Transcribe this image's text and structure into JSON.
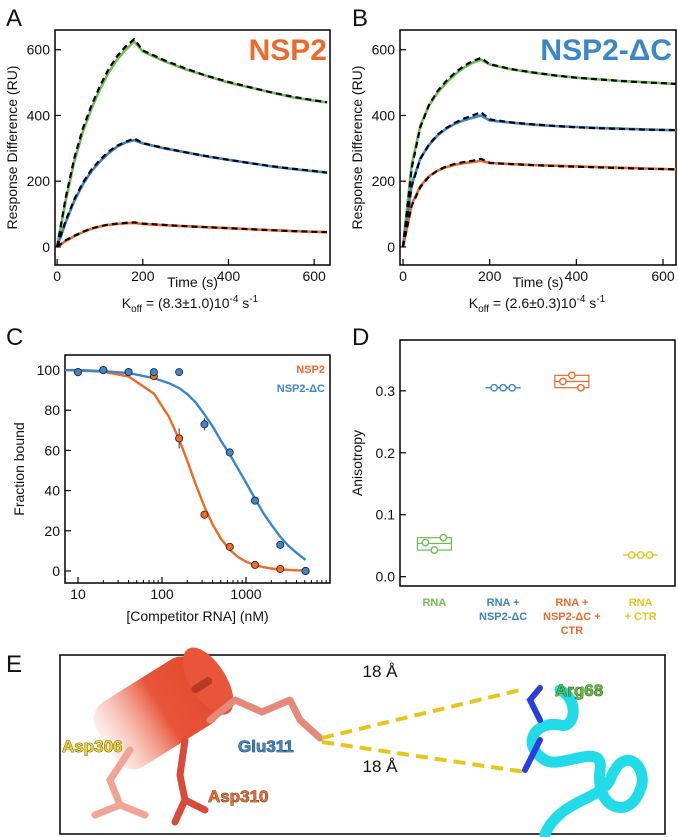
{
  "chart_data": [
    {
      "type": "line",
      "panel_label": "A",
      "title": "NSP2",
      "title_color": "#ee6a2a",
      "xlabel": "Time (s)",
      "ylabel": "Response Difference (RU)",
      "annotation": [
        "K",
        "off",
        " = (8.3±1.0)10",
        "-4",
        " s",
        "-1"
      ],
      "x": [
        0,
        20,
        40,
        60,
        80,
        100,
        120,
        140,
        160,
        180,
        200,
        250,
        300,
        350,
        400,
        450,
        500,
        550,
        600,
        630
      ],
      "xlim": [
        -5,
        637
      ],
      "ylim": [
        -55,
        660
      ],
      "xticks": [
        0,
        200,
        400,
        600
      ],
      "yticks": [
        0,
        200,
        400,
        600
      ],
      "series": [
        {
          "color": "#6cbf4f",
          "values": [
            0,
            140,
            260,
            350,
            420,
            480,
            530,
            570,
            600,
            625,
            595,
            565,
            540,
            520,
            500,
            485,
            470,
            455,
            445,
            440
          ]
        },
        {
          "color": "#3a86c8",
          "values": [
            0,
            75,
            140,
            190,
            230,
            260,
            285,
            305,
            318,
            325,
            315,
            300,
            288,
            275,
            265,
            255,
            245,
            237,
            230,
            226
          ]
        },
        {
          "color": "#ee6a2a",
          "values": [
            0,
            18,
            32,
            45,
            55,
            62,
            67,
            70,
            72,
            73,
            70,
            66,
            63,
            60,
            57,
            54,
            51,
            48,
            46,
            45
          ]
        },
        {
          "color": "#000000",
          "dashed": true,
          "values": [
            0,
            150,
            270,
            360,
            430,
            490,
            540,
            580,
            610,
            632,
            598,
            568,
            543,
            520,
            502,
            486,
            470,
            457,
            446,
            440
          ]
        },
        {
          "color": "#000000",
          "dashed": true,
          "values": [
            0,
            80,
            145,
            195,
            235,
            265,
            290,
            308,
            320,
            330,
            316,
            301,
            288,
            276,
            265,
            255,
            246,
            238,
            231,
            226
          ]
        },
        {
          "color": "#000000",
          "dashed": true,
          "values": [
            0,
            20,
            34,
            46,
            56,
            63,
            68,
            71,
            73,
            75,
            71,
            67,
            63,
            60,
            57,
            54,
            51,
            48,
            46,
            45
          ]
        }
      ]
    },
    {
      "type": "line",
      "panel_label": "B",
      "title": "NSP2-ΔC",
      "title_color": "#3a86c8",
      "xlabel": "Time (s)",
      "ylabel": "Response Difference (RU)",
      "annotation": [
        "K",
        "off",
        " = (2.6±0.3)10",
        "-4",
        " s",
        "-1"
      ],
      "x": [
        0,
        20,
        40,
        60,
        80,
        100,
        120,
        140,
        160,
        180,
        200,
        250,
        300,
        350,
        400,
        450,
        500,
        550,
        600,
        630
      ],
      "xlim": [
        -7,
        630
      ],
      "ylim": [
        -55,
        660
      ],
      "xticks": [
        0,
        200,
        400,
        600
      ],
      "yticks": [
        0,
        200,
        400,
        600
      ],
      "series": [
        {
          "color": "#6cbf4f",
          "values": [
            0,
            250,
            370,
            430,
            470,
            500,
            525,
            545,
            560,
            570,
            555,
            540,
            530,
            522,
            515,
            510,
            505,
            502,
            498,
            496
          ]
        },
        {
          "color": "#3a86c8",
          "values": [
            0,
            190,
            270,
            310,
            340,
            360,
            375,
            385,
            393,
            400,
            385,
            378,
            372,
            368,
            365,
            362,
            360,
            358,
            356,
            355
          ]
        },
        {
          "color": "#ee6a2a",
          "values": [
            0,
            130,
            185,
            215,
            232,
            243,
            250,
            255,
            258,
            262,
            255,
            252,
            249,
            247,
            245,
            243,
            241,
            239,
            237,
            236
          ]
        },
        {
          "color": "#000000",
          "dashed": true,
          "values": [
            0,
            240,
            365,
            432,
            475,
            505,
            530,
            550,
            565,
            575,
            556,
            541,
            531,
            522,
            515,
            510,
            505,
            501,
            498,
            496
          ]
        },
        {
          "color": "#000000",
          "dashed": true,
          "values": [
            0,
            185,
            268,
            312,
            342,
            362,
            378,
            390,
            400,
            410,
            388,
            379,
            373,
            368,
            364,
            361,
            359,
            357,
            356,
            355
          ]
        },
        {
          "color": "#000000",
          "dashed": true,
          "values": [
            0,
            125,
            182,
            214,
            233,
            245,
            253,
            258,
            262,
            268,
            256,
            252,
            249,
            246,
            244,
            242,
            240,
            238,
            237,
            236
          ]
        }
      ]
    },
    {
      "type": "scatter",
      "panel_label": "C",
      "log_x": true,
      "xlabel": "[Competitor RNA] (nM)",
      "ylabel": "Fraction bound",
      "xlim": [
        7,
        10000
      ],
      "ylim": [
        -6,
        107.5
      ],
      "xticks": [
        10,
        100,
        1000
      ],
      "xticks_minor": [
        20,
        30,
        40,
        50,
        60,
        70,
        80,
        90,
        200,
        300,
        400,
        500,
        600,
        700,
        800,
        900,
        2000,
        3000,
        4000,
        5000,
        6000,
        7000,
        8000,
        9000
      ],
      "yticks": [
        0,
        20,
        40,
        60,
        80,
        100
      ],
      "series": [
        {
          "name": "NSP2",
          "color": "#ee6a2a",
          "x": [
            10,
            20,
            40,
            80,
            160,
            320,
            640,
            1280,
            2560,
            5120
          ],
          "values": [
            99,
            100,
            99,
            97,
            66,
            28,
            12,
            3,
            1,
            0
          ],
          "errors": [
            1,
            1,
            1,
            1,
            5,
            2,
            1,
            1,
            1,
            1
          ],
          "fit_x": [
            7,
            10,
            20,
            40,
            80,
            120,
            160,
            200,
            250,
            320,
            400,
            500,
            640,
            800,
            1000,
            1280,
            1600,
            2000,
            2560,
            3200,
            4000,
            5120
          ],
          "fit_values": [
            100,
            99.8,
            99.2,
            96.8,
            88.3,
            77,
            65.4,
            54.8,
            43.6,
            32.1,
            23.2,
            16.2,
            10.6,
            7,
            4.6,
            2.9,
            1.9,
            1.2,
            0.7,
            0.5,
            0.3,
            0.2
          ]
        },
        {
          "name": "NSP2-ΔC",
          "color": "#3a86c8",
          "x": [
            10,
            20,
            40,
            80,
            160,
            320,
            640,
            1280,
            2560,
            5120
          ],
          "values": [
            99,
            100,
            99,
            99,
            99,
            73,
            59,
            35,
            13,
            0
          ],
          "errors": [
            2,
            1,
            1,
            1,
            1,
            3,
            2,
            1,
            1,
            1
          ],
          "fit_x": [
            7,
            10,
            20,
            40,
            80,
            120,
            160,
            200,
            250,
            320,
            400,
            500,
            640,
            800,
            1000,
            1280,
            1600,
            2000,
            2560,
            3200,
            4000,
            5120
          ],
          "fit_values": [
            100,
            100,
            99.5,
            98.5,
            96,
            93.5,
            91,
            88,
            84,
            78,
            72,
            65,
            58,
            51,
            44,
            36,
            29,
            23,
            17,
            12.5,
            9,
            5.5
          ]
        }
      ]
    },
    {
      "type": "dot",
      "panel_label": "D",
      "ylabel": "Anisotropy",
      "ylim": [
        -0.015,
        0.382
      ],
      "yticks": [
        {
          "value": 0,
          "label": "0.0"
        },
        0.1,
        0.2,
        0.3
      ],
      "categories": [
        [
          "RNA"
        ],
        [
          "RNA +",
          "NSP2-ΔC"
        ],
        [
          "RNA +",
          "NSP2-ΔC +",
          "CTR"
        ],
        [
          "RNA",
          "+ CTR"
        ]
      ],
      "colors": [
        "#6cbf4f",
        "#3a86c8",
        "#ee6a2a",
        "#e8c619"
      ],
      "values": [
        [
          0.055,
          0.043,
          0.063
        ],
        [
          0.305,
          0.305,
          0.305
        ],
        [
          0.315,
          0.325,
          0.305
        ],
        [
          0.035,
          0.035,
          0.035
        ]
      ]
    }
  ],
  "panel_e": {
    "label": "E",
    "distances": [
      "18 Å",
      "18 Å"
    ],
    "residues": [
      "Arg68",
      "Asp306",
      "Glu311",
      "Asp310"
    ]
  }
}
